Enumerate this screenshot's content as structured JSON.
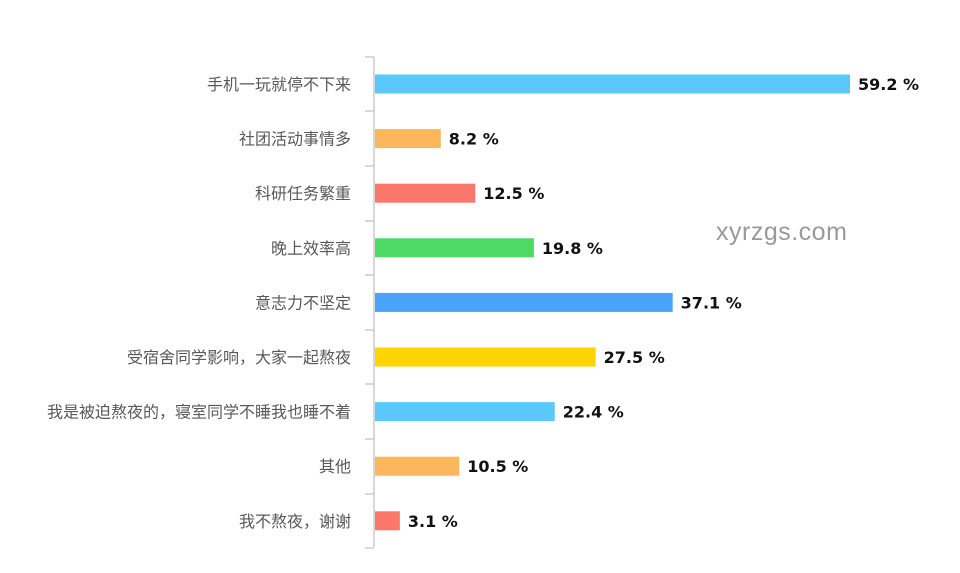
{
  "watermark": "xyrzgs.com",
  "chart_data": {
    "type": "bar",
    "orientation": "horizontal",
    "categories": [
      "手机一玩就停不下来",
      "社团活动事情多",
      "科研任务繁重",
      "晚上效率高",
      "意志力不坚定",
      "受宿舍同学影响，大家一起熬夜",
      "我是被迫熬夜的，寝室同学不睡我也睡不着",
      "其他",
      "我不熬夜，谢谢"
    ],
    "values": [
      59.2,
      8.2,
      12.5,
      19.8,
      37.1,
      27.5,
      22.4,
      10.5,
      3.1
    ],
    "value_labels": [
      "59.2 %",
      "8.2 %",
      "12.5 %",
      "19.8 %",
      "37.1 %",
      "27.5 %",
      "22.4 %",
      "10.5 %",
      "3.1 %"
    ],
    "unit": "%",
    "xlim": [
      0,
      59.2
    ],
    "colors": [
      "#5bc8fb",
      "#fcb65b",
      "#fb776c",
      "#4cd964",
      "#4aa2fb",
      "#fed503",
      "#5bc8fb",
      "#fcb65b",
      "#fb776c"
    ],
    "axis_color": "#cccccc",
    "grid": false,
    "legend": "none"
  }
}
